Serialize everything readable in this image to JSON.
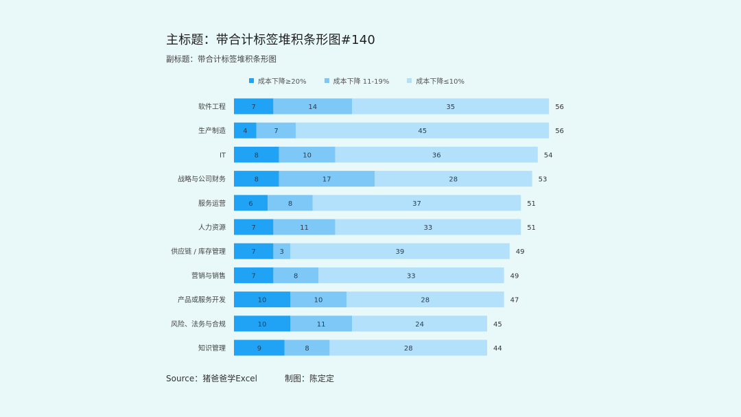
{
  "title": "主标题：带合计标签堆积条形图#140",
  "subtitle": "副标题：带合计标签堆积条形图",
  "footer": {
    "source": "Source：猪爸爸学Excel",
    "credit": "制图：陈定定"
  },
  "colors": {
    "background": "#e9f8f8",
    "series": [
      "#21a3f5",
      "#7ec8f7",
      "#b3e1fb"
    ],
    "label": "#2a3d52"
  },
  "chart_data": {
    "type": "bar",
    "orientation": "horizontal",
    "stacked": true,
    "categories": [
      "软件工程",
      "生产制造",
      "IT",
      "战略与公司财务",
      "服务运营",
      "人力资源",
      "供应链 / 库存管理",
      "营销与销售",
      "产品或服务开发",
      "风险、法务与合规",
      "知识管理"
    ],
    "series": [
      {
        "name": "成本下降≥20%",
        "values": [
          7,
          4,
          8,
          8,
          6,
          7,
          7,
          7,
          10,
          10,
          9
        ]
      },
      {
        "name": "成本下降 11-19%",
        "values": [
          14,
          7,
          10,
          17,
          8,
          11,
          3,
          8,
          10,
          11,
          8
        ]
      },
      {
        "name": "成本下降≤10%",
        "values": [
          35,
          45,
          36,
          28,
          37,
          33,
          39,
          33,
          28,
          24,
          28
        ]
      }
    ],
    "totals": [
      56,
      56,
      54,
      53,
      51,
      51,
      49,
      49,
      47,
      45,
      44
    ],
    "legend_position": "top",
    "grid": false
  }
}
